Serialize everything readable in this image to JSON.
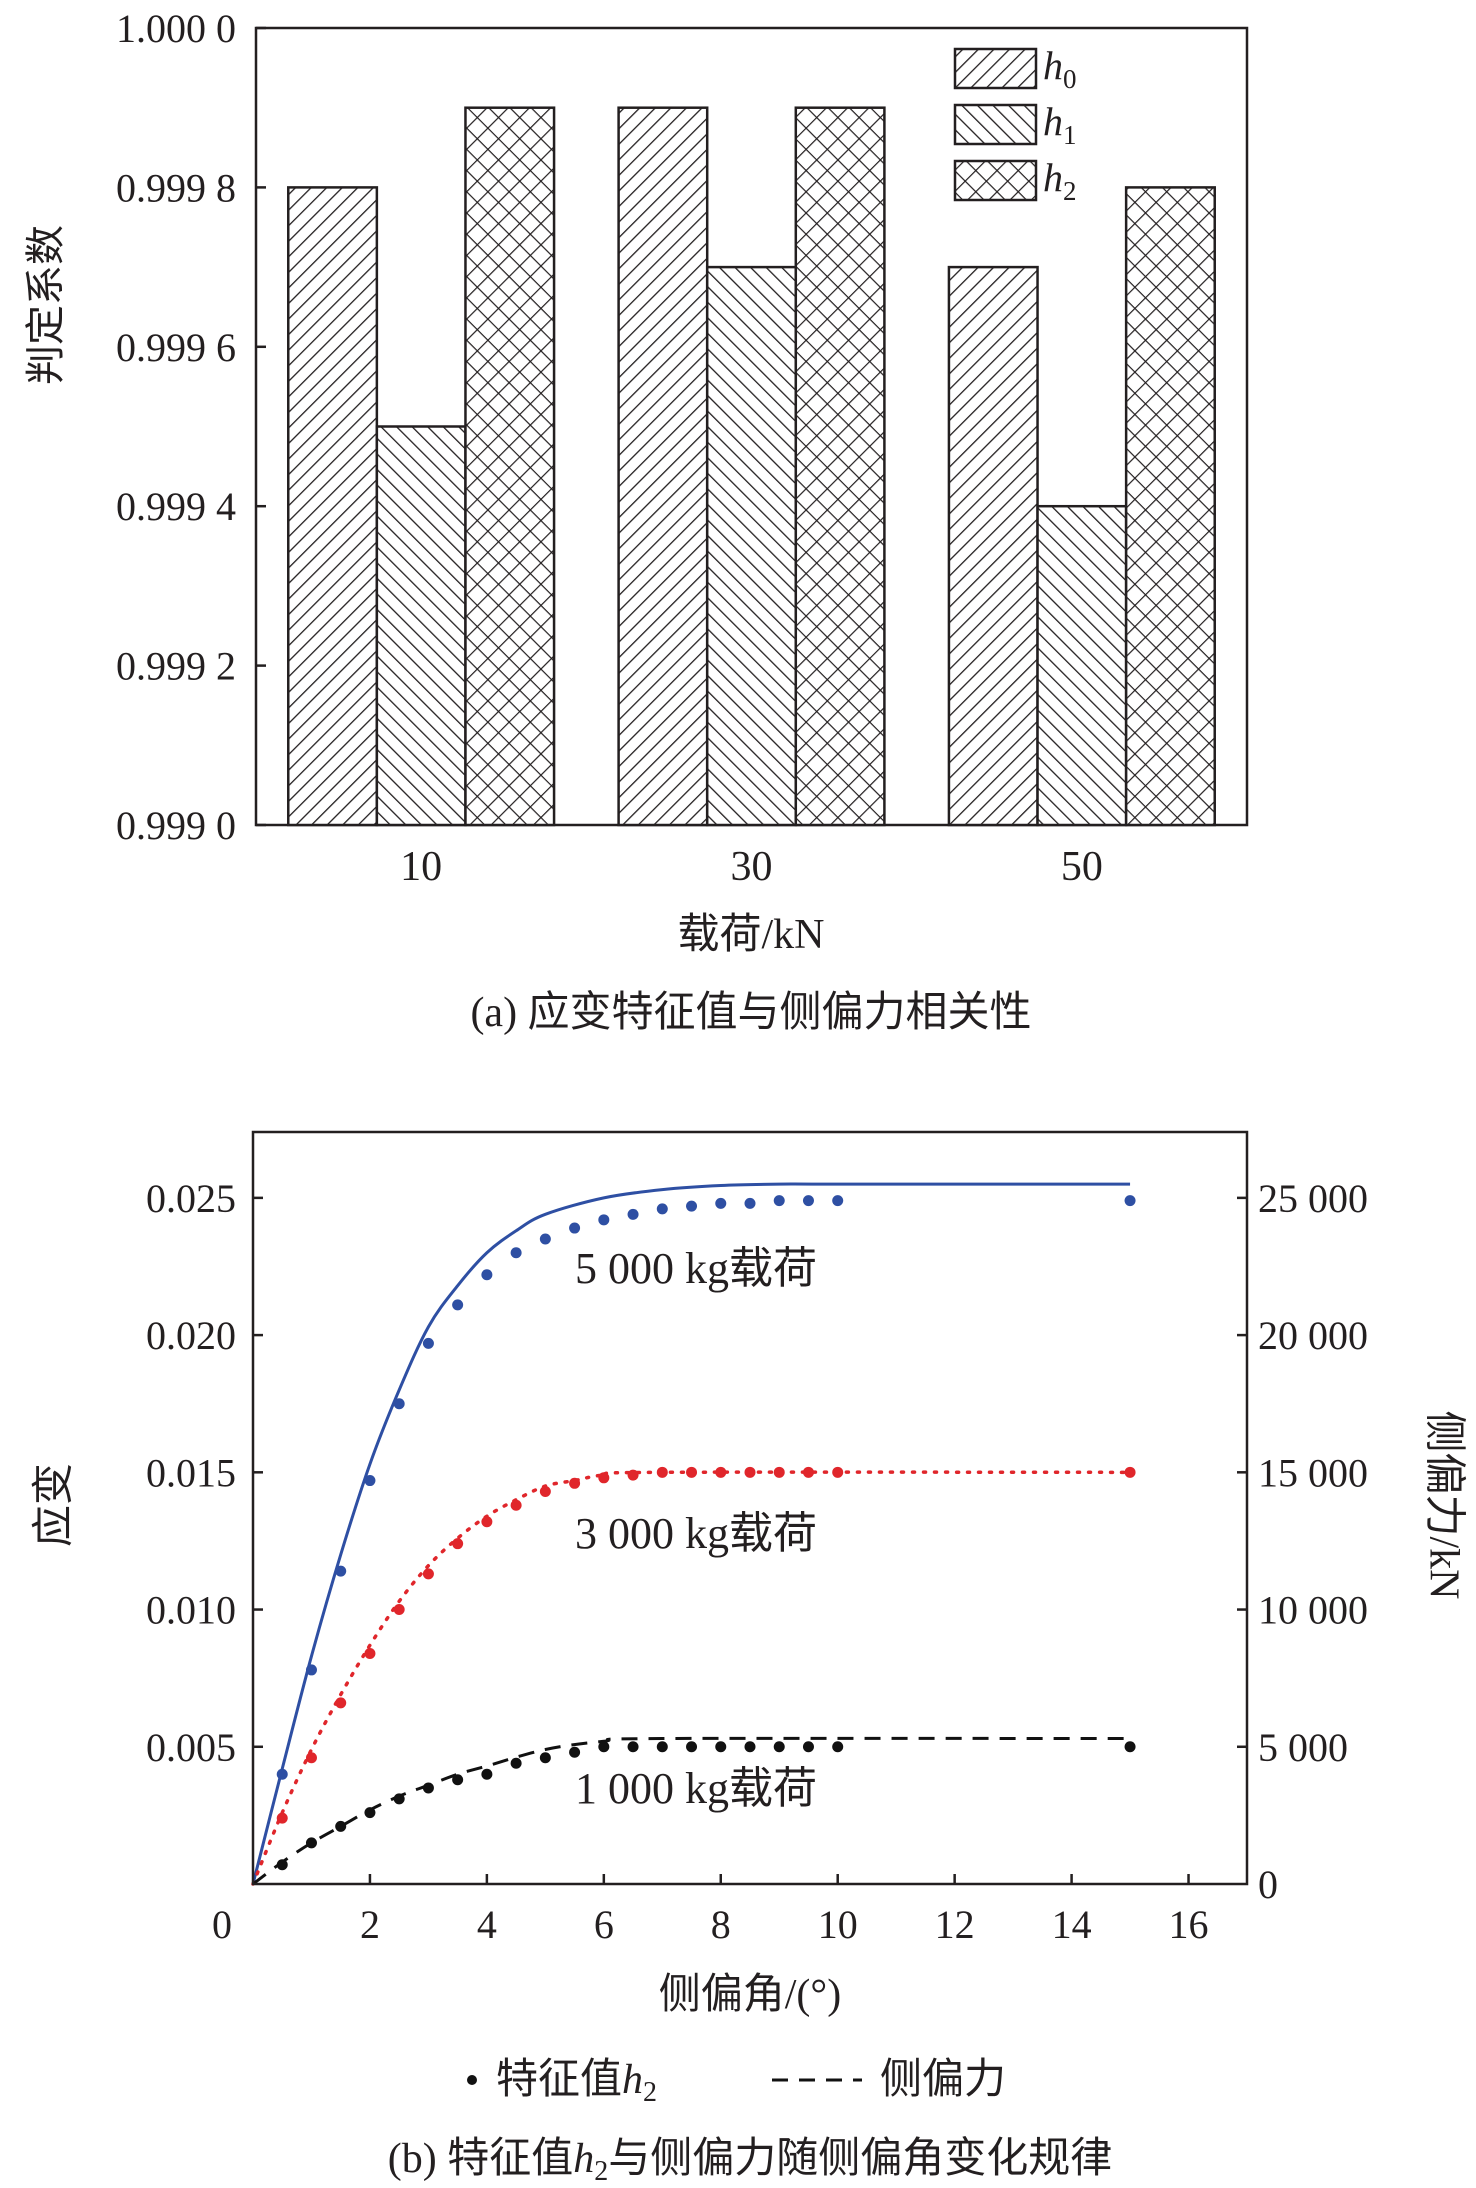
{
  "chart_data": [
    {
      "type": "bar",
      "title": "",
      "caption": "(a) 应变特征值与侧偏力相关性",
      "xlabel": "载荷/kN",
      "ylabel": "判定系数",
      "categories": [
        "10",
        "30",
        "50"
      ],
      "ylim": [
        0.999,
        1.0
      ],
      "yticks": [
        0.999,
        0.9992,
        0.9994,
        0.9996,
        0.9998,
        1.0
      ],
      "ytick_labels": [
        "0.999 0",
        "0.999 2",
        "0.999 4",
        "0.999 6",
        "0.999 8",
        "1.000 0"
      ],
      "legend_position": "top-right",
      "series": [
        {
          "name": "h",
          "sub": "0",
          "pattern": "diagonal",
          "values": [
            0.9998,
            0.9999,
            0.9997
          ]
        },
        {
          "name": "h",
          "sub": "1",
          "pattern": "back-diagonal",
          "values": [
            0.9995,
            0.9997,
            0.9994
          ]
        },
        {
          "name": "h",
          "sub": "2",
          "pattern": "crosshatch",
          "values": [
            0.9999,
            0.9999,
            0.9998
          ]
        }
      ]
    },
    {
      "type": "scatter",
      "caption_prefix": "(b) 特征值",
      "caption_var": "h",
      "caption_sub": "2",
      "caption_suffix": "与侧偏力随侧偏角变化规律",
      "xlabel": "侧偏角/(°)",
      "ylabel": "应变",
      "y2label": "侧偏力/kN",
      "xlim": [
        0,
        17
      ],
      "ylim": [
        0,
        0.0274
      ],
      "y2lim": [
        0,
        27400
      ],
      "xticks": [
        0,
        2,
        4,
        6,
        8,
        10,
        12,
        14,
        16
      ],
      "yticks": [
        0.005,
        0.01,
        0.015,
        0.02,
        0.025
      ],
      "ytick_labels": [
        "0.005",
        "0.010",
        "0.015",
        "0.020",
        "0.025"
      ],
      "y2ticks": [
        0,
        5000,
        10000,
        15000,
        20000,
        25000
      ],
      "y2tick_labels": [
        "0",
        "5 000",
        "10 000",
        "15 000",
        "20 000",
        "25 000"
      ],
      "legend": {
        "points_label_prefix": "特征值",
        "points_var": "h",
        "points_sub": "2",
        "line_label": "侧偏力"
      },
      "x_points": [
        0.5,
        1,
        1.5,
        2,
        2.5,
        3,
        3.5,
        4,
        4.5,
        5,
        5.5,
        6,
        6.5,
        7,
        7.5,
        8,
        8.5,
        9,
        9.5,
        10,
        15
      ],
      "series": [
        {
          "name": "5 000 kg载荷",
          "color": "#2e4fa3",
          "line_style": "solid",
          "strain": [
            0.004,
            0.0078,
            0.0114,
            0.0147,
            0.0175,
            0.0197,
            0.0211,
            0.0222,
            0.023,
            0.0235,
            0.0239,
            0.0242,
            0.0244,
            0.0246,
            0.0247,
            0.0248,
            0.0248,
            0.0249,
            0.0249,
            0.0249,
            0.0249
          ],
          "force_x": [
            0,
            0.5,
            1,
            1.5,
            2,
            2.5,
            3,
            3.5,
            4,
            4.5,
            5,
            6,
            7,
            8,
            9,
            10,
            15
          ],
          "force": [
            0,
            4200,
            8300,
            12000,
            15300,
            18000,
            20300,
            21800,
            23000,
            23800,
            24400,
            25000,
            25300,
            25450,
            25500,
            25500,
            25500
          ]
        },
        {
          "name": "3 000 kg载荷",
          "color": "#e0262b",
          "line_style": "dotted",
          "strain": [
            0.0024,
            0.0046,
            0.0066,
            0.0084,
            0.01,
            0.0113,
            0.0124,
            0.0132,
            0.0138,
            0.0143,
            0.0146,
            0.0148,
            0.0149,
            0.015,
            0.015,
            0.015,
            0.015,
            0.015,
            0.015,
            0.015,
            0.015
          ],
          "force_x": [
            0,
            0.5,
            1,
            1.5,
            2,
            2.5,
            3,
            3.5,
            4,
            4.5,
            5,
            5.5,
            6,
            7,
            15
          ],
          "force": [
            0,
            2600,
            4900,
            6900,
            8700,
            10300,
            11600,
            12600,
            13400,
            14000,
            14500,
            14700,
            14900,
            15000,
            15000
          ]
        },
        {
          "name": "1 000 kg载荷",
          "color": "#111111",
          "line_style": "dashed",
          "strain": [
            0.0007,
            0.0015,
            0.0021,
            0.0026,
            0.0031,
            0.0035,
            0.0038,
            0.004,
            0.0044,
            0.0046,
            0.0048,
            0.005,
            0.005,
            0.005,
            0.005,
            0.005,
            0.005,
            0.005,
            0.005,
            0.005,
            0.005
          ],
          "force_x": [
            0,
            0.5,
            1,
            1.5,
            2,
            2.5,
            3,
            3.5,
            4,
            5,
            6,
            7,
            15
          ],
          "force": [
            0,
            800,
            1500,
            2100,
            2700,
            3200,
            3600,
            4000,
            4300,
            4900,
            5200,
            5300,
            5300
          ]
        }
      ]
    }
  ]
}
